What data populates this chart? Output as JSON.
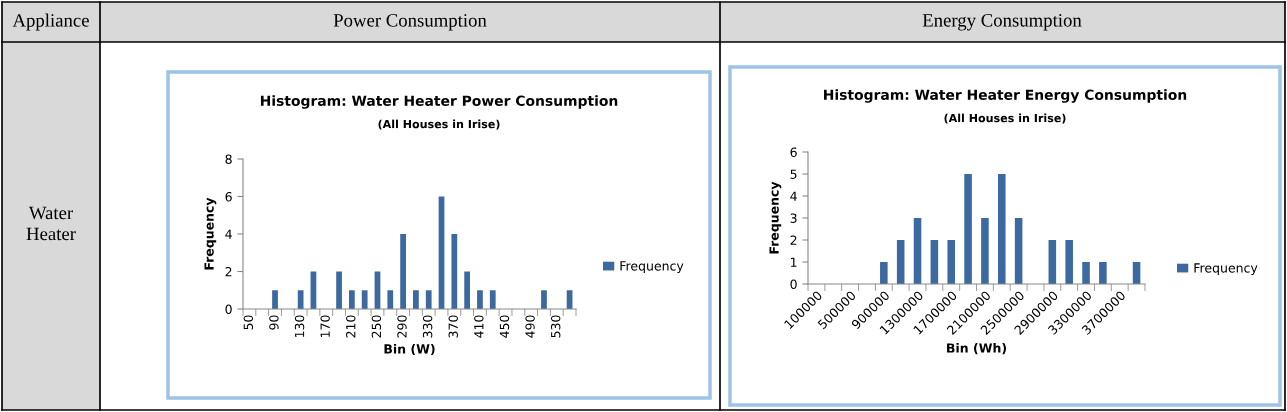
{
  "chart_data": [
    {
      "type": "other",
      "annotations": [
        "Appliance",
        "Power Consumption",
        "Energy Consumption",
        "Water Heater"
      ]
    },
    {
      "type": "bar",
      "title": "Histogram: Water Heater Power Consumption",
      "subtitle": "(All Houses in Irise)",
      "xlabel": "Bin (W)",
      "ylabel": "Frequency",
      "categories": [
        "50",
        null,
        "90",
        null,
        "130",
        null,
        "170",
        null,
        "210",
        null,
        "250",
        null,
        "290",
        null,
        "330",
        null,
        "370",
        null,
        "410",
        null,
        "450",
        null,
        "490",
        null,
        "530",
        null
      ],
      "series": [
        {
          "name": "Frequency",
          "color": "#3c6aa0",
          "values": [
            0,
            0,
            1,
            0,
            1,
            2,
            0,
            2,
            1,
            1,
            2,
            1,
            4,
            1,
            1,
            6,
            4,
            2,
            1,
            1,
            0,
            0,
            0,
            1,
            0,
            1
          ]
        }
      ],
      "ylim": [
        0,
        8
      ],
      "yticks": [
        0,
        2,
        4,
        6,
        8
      ],
      "legend": "right"
    },
    {
      "type": "bar",
      "title": "Histogram: Water Heater Energy Consumption",
      "subtitle": "(All Houses in Irise)",
      "xlabel": "Bin (Wh)",
      "ylabel": "Frequency",
      "categories": [
        "100000",
        null,
        "500000",
        null,
        "900000",
        null,
        "1300000",
        null,
        "1700000",
        null,
        "2100000",
        null,
        "2500000",
        null,
        "2900000",
        null,
        "3300000",
        null,
        "3700000",
        null
      ],
      "series": [
        {
          "name": "Frequency",
          "color": "#3c6aa0",
          "values": [
            0,
            0,
            0,
            0,
            1,
            2,
            3,
            2,
            2,
            5,
            3,
            5,
            3,
            0,
            2,
            2,
            1,
            1,
            0,
            1
          ]
        }
      ],
      "ylim": [
        0,
        6
      ],
      "yticks": [
        0,
        1,
        2,
        3,
        4,
        5,
        6
      ],
      "legend": "right"
    }
  ]
}
